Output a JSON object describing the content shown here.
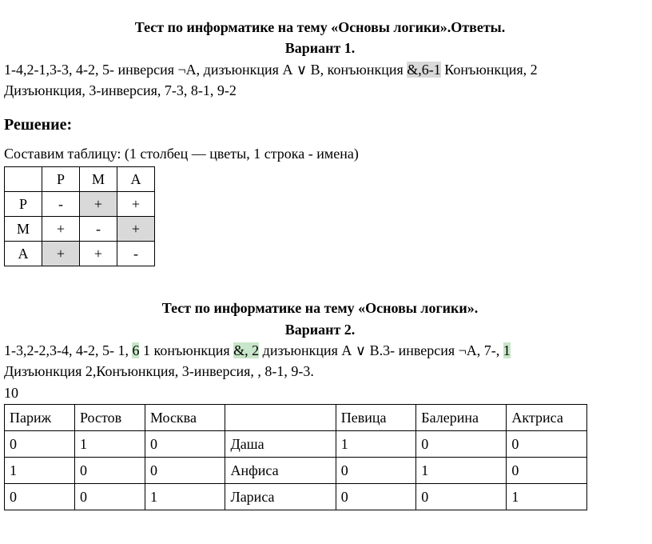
{
  "v1": {
    "title": "Тест по информатике на тему «Основы логики».Ответы.",
    "variant": "Вариант 1.",
    "line1_a": "1-4,2-1,3-3, 4-2, 5- инверсия ¬А, дизъюнкция А ∨ В, конъюнкция ",
    "line1_hl": "&,6-1",
    "line1_b": " Конъюнкция, 2",
    "line2": "Дизъюнкция, 3-инверсия, 7-3, 8-1, 9-2",
    "solution": "Решение:",
    "table_caption": "Составим таблицу: (1 столбец — цветы, 1 строка - имена)",
    "table": {
      "headers": [
        "",
        "Р",
        "М",
        "А"
      ],
      "rows": [
        {
          "label": "Р",
          "cells": [
            {
              "v": "-"
            },
            {
              "v": "+",
              "hl": true
            },
            {
              "v": "+"
            }
          ]
        },
        {
          "label": "М",
          "cells": [
            {
              "v": "+"
            },
            {
              "v": "-"
            },
            {
              "v": "+",
              "hl": true
            }
          ]
        },
        {
          "label": "А",
          "cells": [
            {
              "v": "+",
              "hl": true
            },
            {
              "v": "+"
            },
            {
              "v": "-"
            }
          ]
        }
      ]
    }
  },
  "v2": {
    "title": "Тест по информатике на тему «Основы логики».",
    "variant": "Вариант 2.",
    "segs": [
      {
        "t": "1-3,2-2,3-4, 4-2, 5- 1, "
      },
      {
        "t": "6",
        "hl": "green"
      },
      {
        "t": " 1 конъюнкция "
      },
      {
        "t": "&, 2",
        "hl": "green"
      },
      {
        "t": " дизъюнкция А ∨ В.3- инверсия ¬А, 7-, "
      },
      {
        "t": "1",
        "hl": "green"
      }
    ],
    "line2": "Дизъюнкция 2,Конъюнкция, 3-инверсия, , 8-1, 9-3.",
    "line3": "10",
    "table": {
      "col_widths": [
        "70px",
        "70px",
        "80px",
        "110px",
        "80px",
        "90px",
        "80px"
      ],
      "rows": [
        [
          "Париж",
          "Ростов",
          "Москва",
          "",
          "Певица",
          "Балерина",
          "Актриса"
        ],
        [
          "0",
          "1",
          "0",
          "Даша",
          "1",
          "0",
          "0"
        ],
        [
          "1",
          "0",
          "0",
          "Анфиса",
          "0",
          "1",
          "0"
        ],
        [
          "0",
          "0",
          "1",
          "Лариса",
          "0",
          "0",
          "1"
        ]
      ]
    }
  }
}
